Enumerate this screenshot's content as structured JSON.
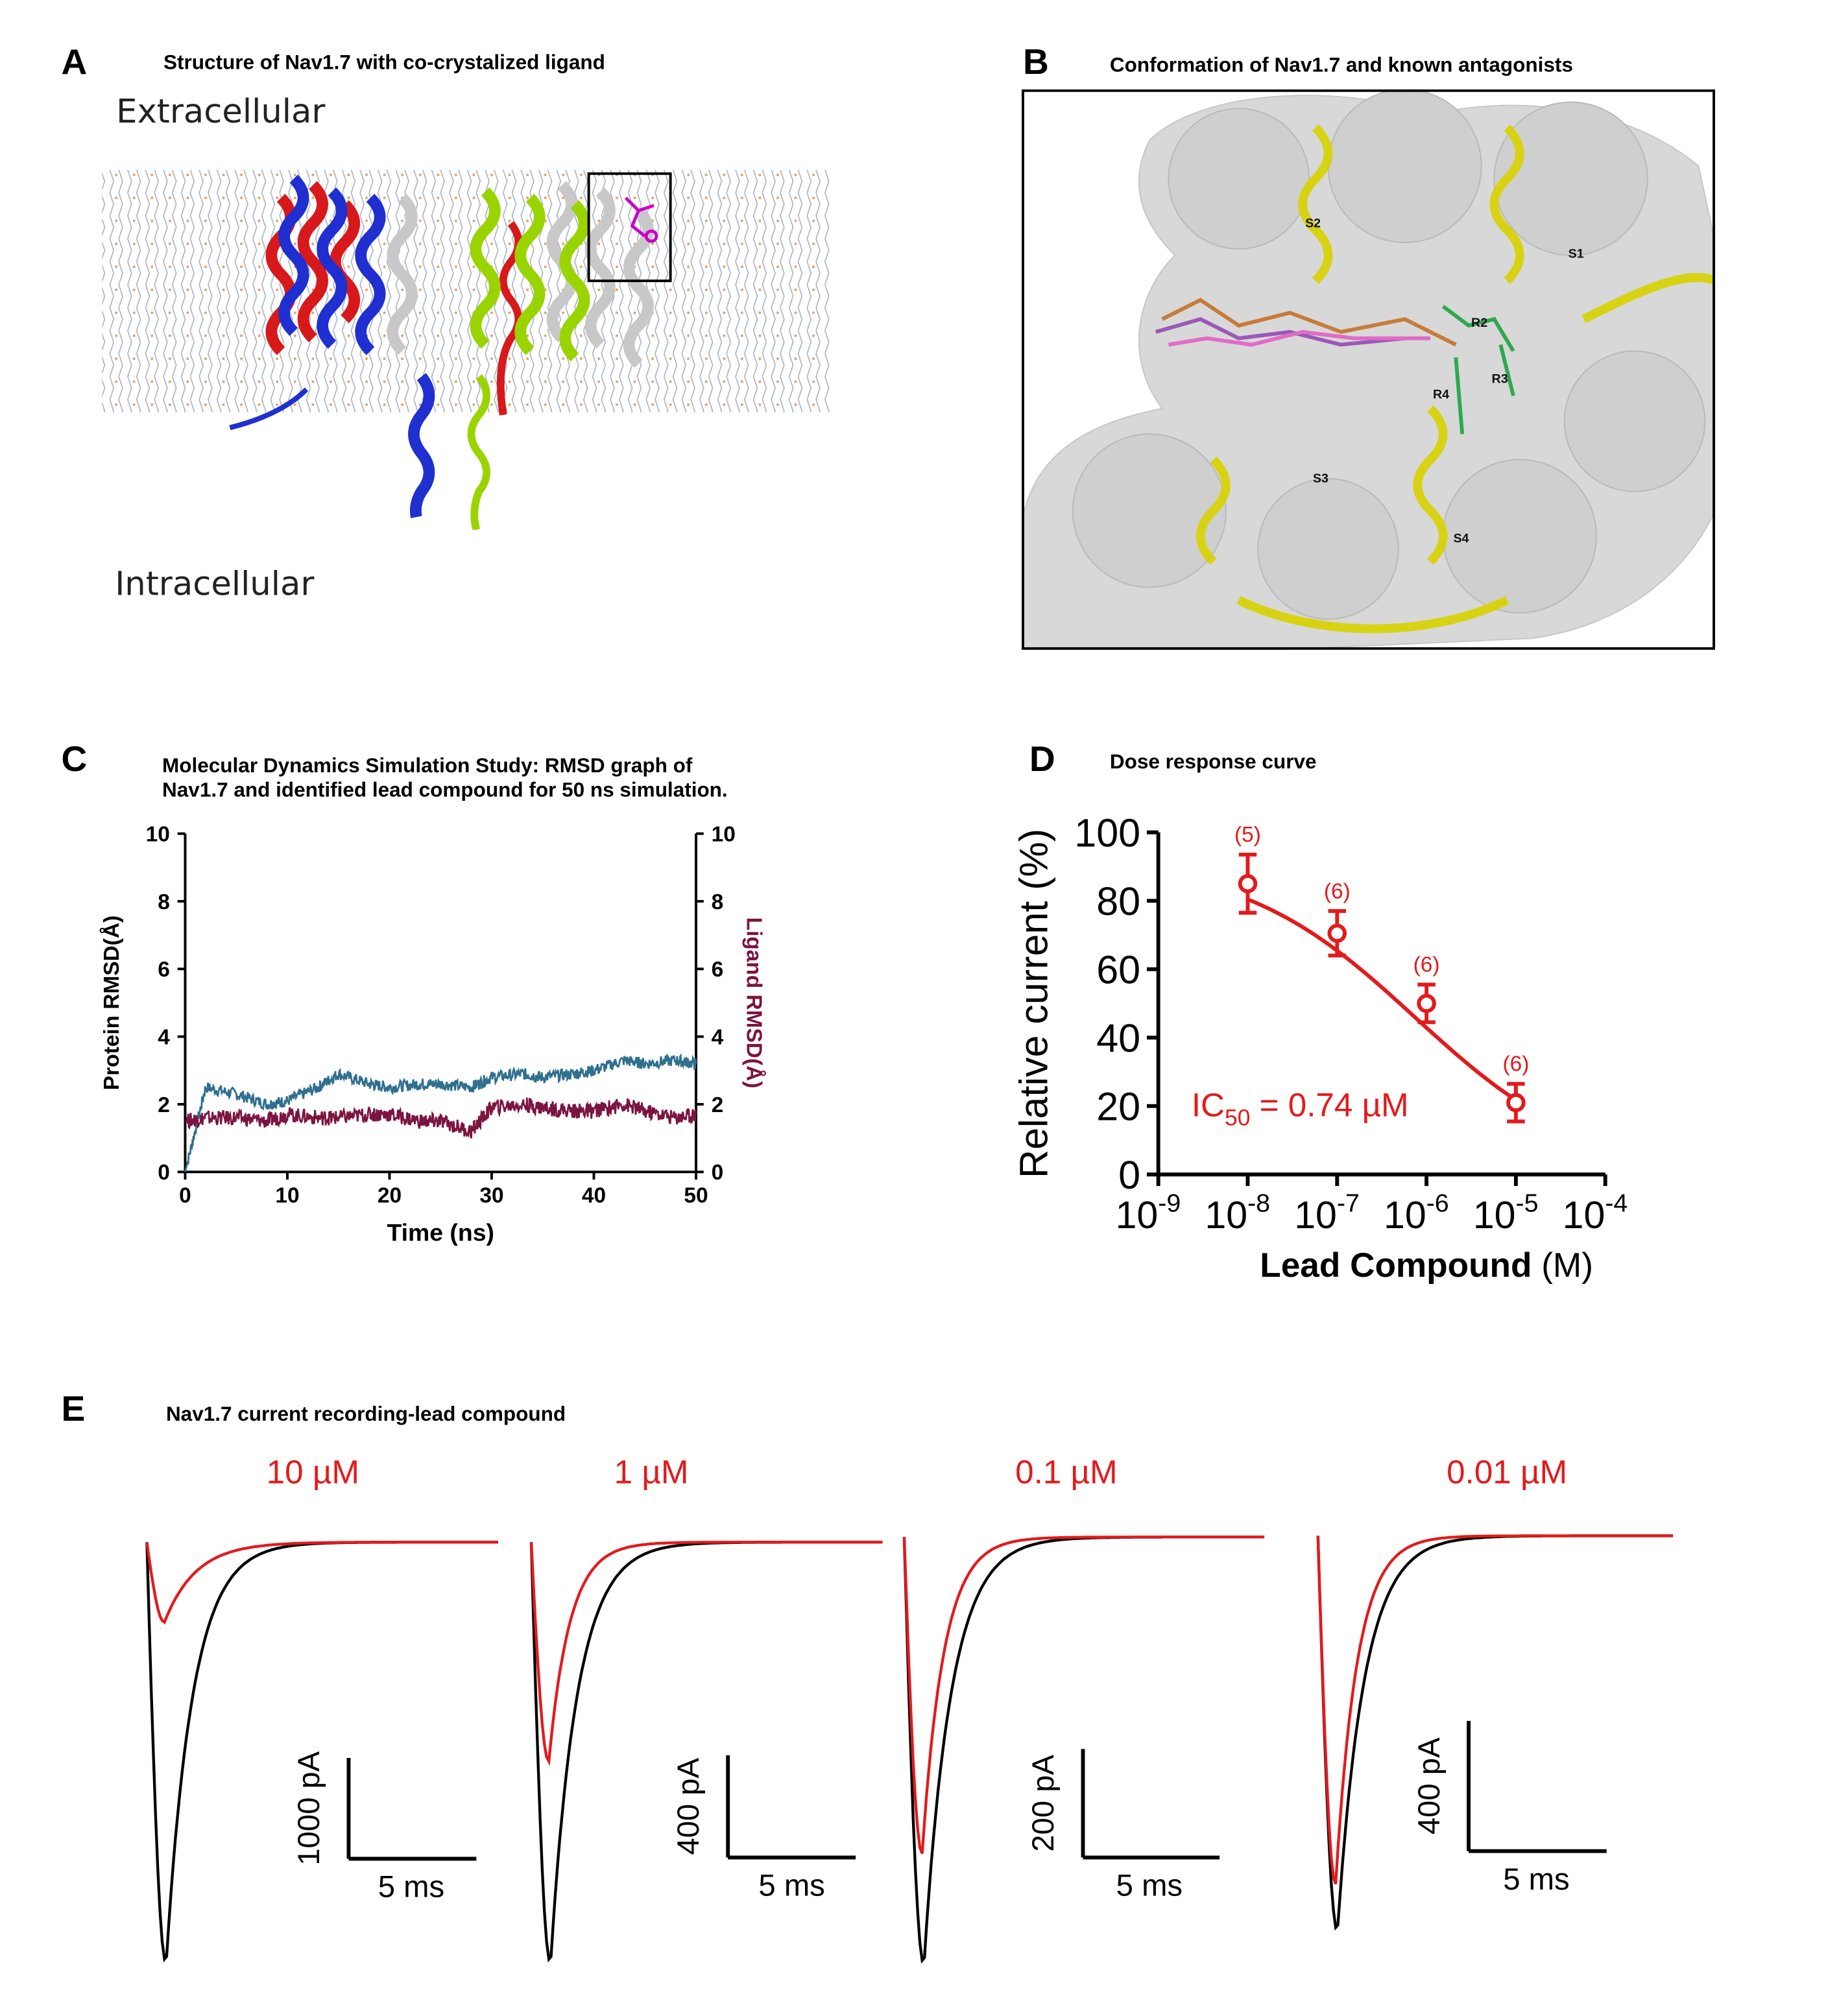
{
  "panels": {
    "A": {
      "letter": "A",
      "title": "Structure of Nav1.7 with co-crystalized ligand",
      "extracellular": "Extracellular",
      "intracellular": "Intracellular"
    },
    "B": {
      "letter": "B",
      "title": "Conformation of Nav1.7 and known antagonists",
      "labels": [
        "S1",
        "S2",
        "S3",
        "S4",
        "R2",
        "R3",
        "R4"
      ]
    },
    "C": {
      "letter": "C",
      "title_line1": "Molecular Dynamics Simulation Study: RMSD graph of",
      "title_line2": "Nav1.7 and identified lead compound for 50 ns simulation."
    },
    "D": {
      "letter": "D",
      "title": "Dose response curve",
      "ic50_prefix": "IC",
      "ic50_sub": "50",
      "ic50_suffix": " = 0.74 µM"
    },
    "E": {
      "letter": "E",
      "title": "Nav1.7 current recording-lead compound"
    }
  },
  "colors": {
    "red": "#e31a1c",
    "black": "#000000",
    "protein": "#2f6f8f",
    "ligand": "#7b1440",
    "helix_red": "#d7191c",
    "helix_blue": "#1f2fd0",
    "helix_green": "#9ad400",
    "yellow": "#d8d200"
  },
  "chart_data": [
    {
      "panel": "C",
      "type": "line",
      "xlabel": "Time (ns)",
      "ylabel_left": "Protein RMSD(Å)",
      "ylabel_right": "Ligand RMSD(Å)",
      "xlim": [
        0,
        50
      ],
      "ylim": [
        0,
        10
      ],
      "xticks": [
        "0",
        "10",
        "20",
        "30",
        "40",
        "50"
      ],
      "yticks": [
        "0",
        "2",
        "4",
        "6",
        "8",
        "10"
      ],
      "series": [
        {
          "name": "Protein RMSD(Å)",
          "x": [
            0,
            2,
            5,
            8,
            10,
            13,
            15,
            18,
            20,
            23,
            25,
            28,
            30,
            33,
            35,
            38,
            40,
            43,
            45,
            48,
            50
          ],
          "values": [
            0,
            2.5,
            2.3,
            2.0,
            2.1,
            2.5,
            2.9,
            2.6,
            2.5,
            2.6,
            2.6,
            2.5,
            2.8,
            2.9,
            2.8,
            2.9,
            3.0,
            3.3,
            3.2,
            3.3,
            3.2
          ]
        },
        {
          "name": "Ligand RMSD(Å)",
          "x": [
            0,
            2,
            5,
            8,
            10,
            13,
            15,
            18,
            20,
            23,
            25,
            28,
            30,
            33,
            35,
            38,
            40,
            43,
            45,
            48,
            50
          ],
          "values": [
            1.5,
            1.6,
            1.6,
            1.5,
            1.7,
            1.6,
            1.6,
            1.7,
            1.7,
            1.5,
            1.5,
            1.2,
            1.9,
            2.0,
            1.9,
            1.8,
            1.8,
            2.0,
            1.8,
            1.6,
            1.7
          ]
        }
      ]
    },
    {
      "panel": "D",
      "type": "scatter",
      "xlabel_bold": "Lead Compound",
      "xlabel_unit": " (M)",
      "ylabel": "Relative current (%)",
      "xscale": "log",
      "xlim": [
        -9,
        -4
      ],
      "ylim": [
        0,
        100
      ],
      "xticks": [
        "-9",
        "-8",
        "-7",
        "-6",
        "-5",
        "-4"
      ],
      "yticks": [
        "0",
        "20",
        "40",
        "60",
        "80",
        "100"
      ],
      "x": [
        1e-08,
        1e-07,
        1e-06,
        1e-05
      ],
      "values": [
        85,
        70.5,
        50,
        21
      ],
      "errors": [
        8.5,
        6.5,
        5.5,
        5.5
      ],
      "n_labels": [
        "(5)",
        "(6)",
        "(6)",
        "(6)"
      ],
      "fit": {
        "ic50": 0.74
      }
    },
    {
      "panel": "E",
      "type": "line",
      "traces": [
        {
          "conc": "10 µM",
          "scale_y": "1000 pA",
          "scale_x": "5 ms",
          "control_peak": 1.0,
          "drug_peak": 0.19
        },
        {
          "conc": "1 µM",
          "scale_y": "400 pA",
          "scale_x": "5 ms",
          "control_peak": 1.0,
          "drug_peak": 0.52
        },
        {
          "conc": "0.1 µM",
          "scale_y": "200 pA",
          "scale_x": "5 ms",
          "control_peak": 1.0,
          "drug_peak": 0.74
        },
        {
          "conc": "0.01 µM",
          "scale_y": "400 pA",
          "scale_x": "5 ms",
          "control_peak": 1.0,
          "drug_peak": 0.88
        }
      ]
    }
  ]
}
